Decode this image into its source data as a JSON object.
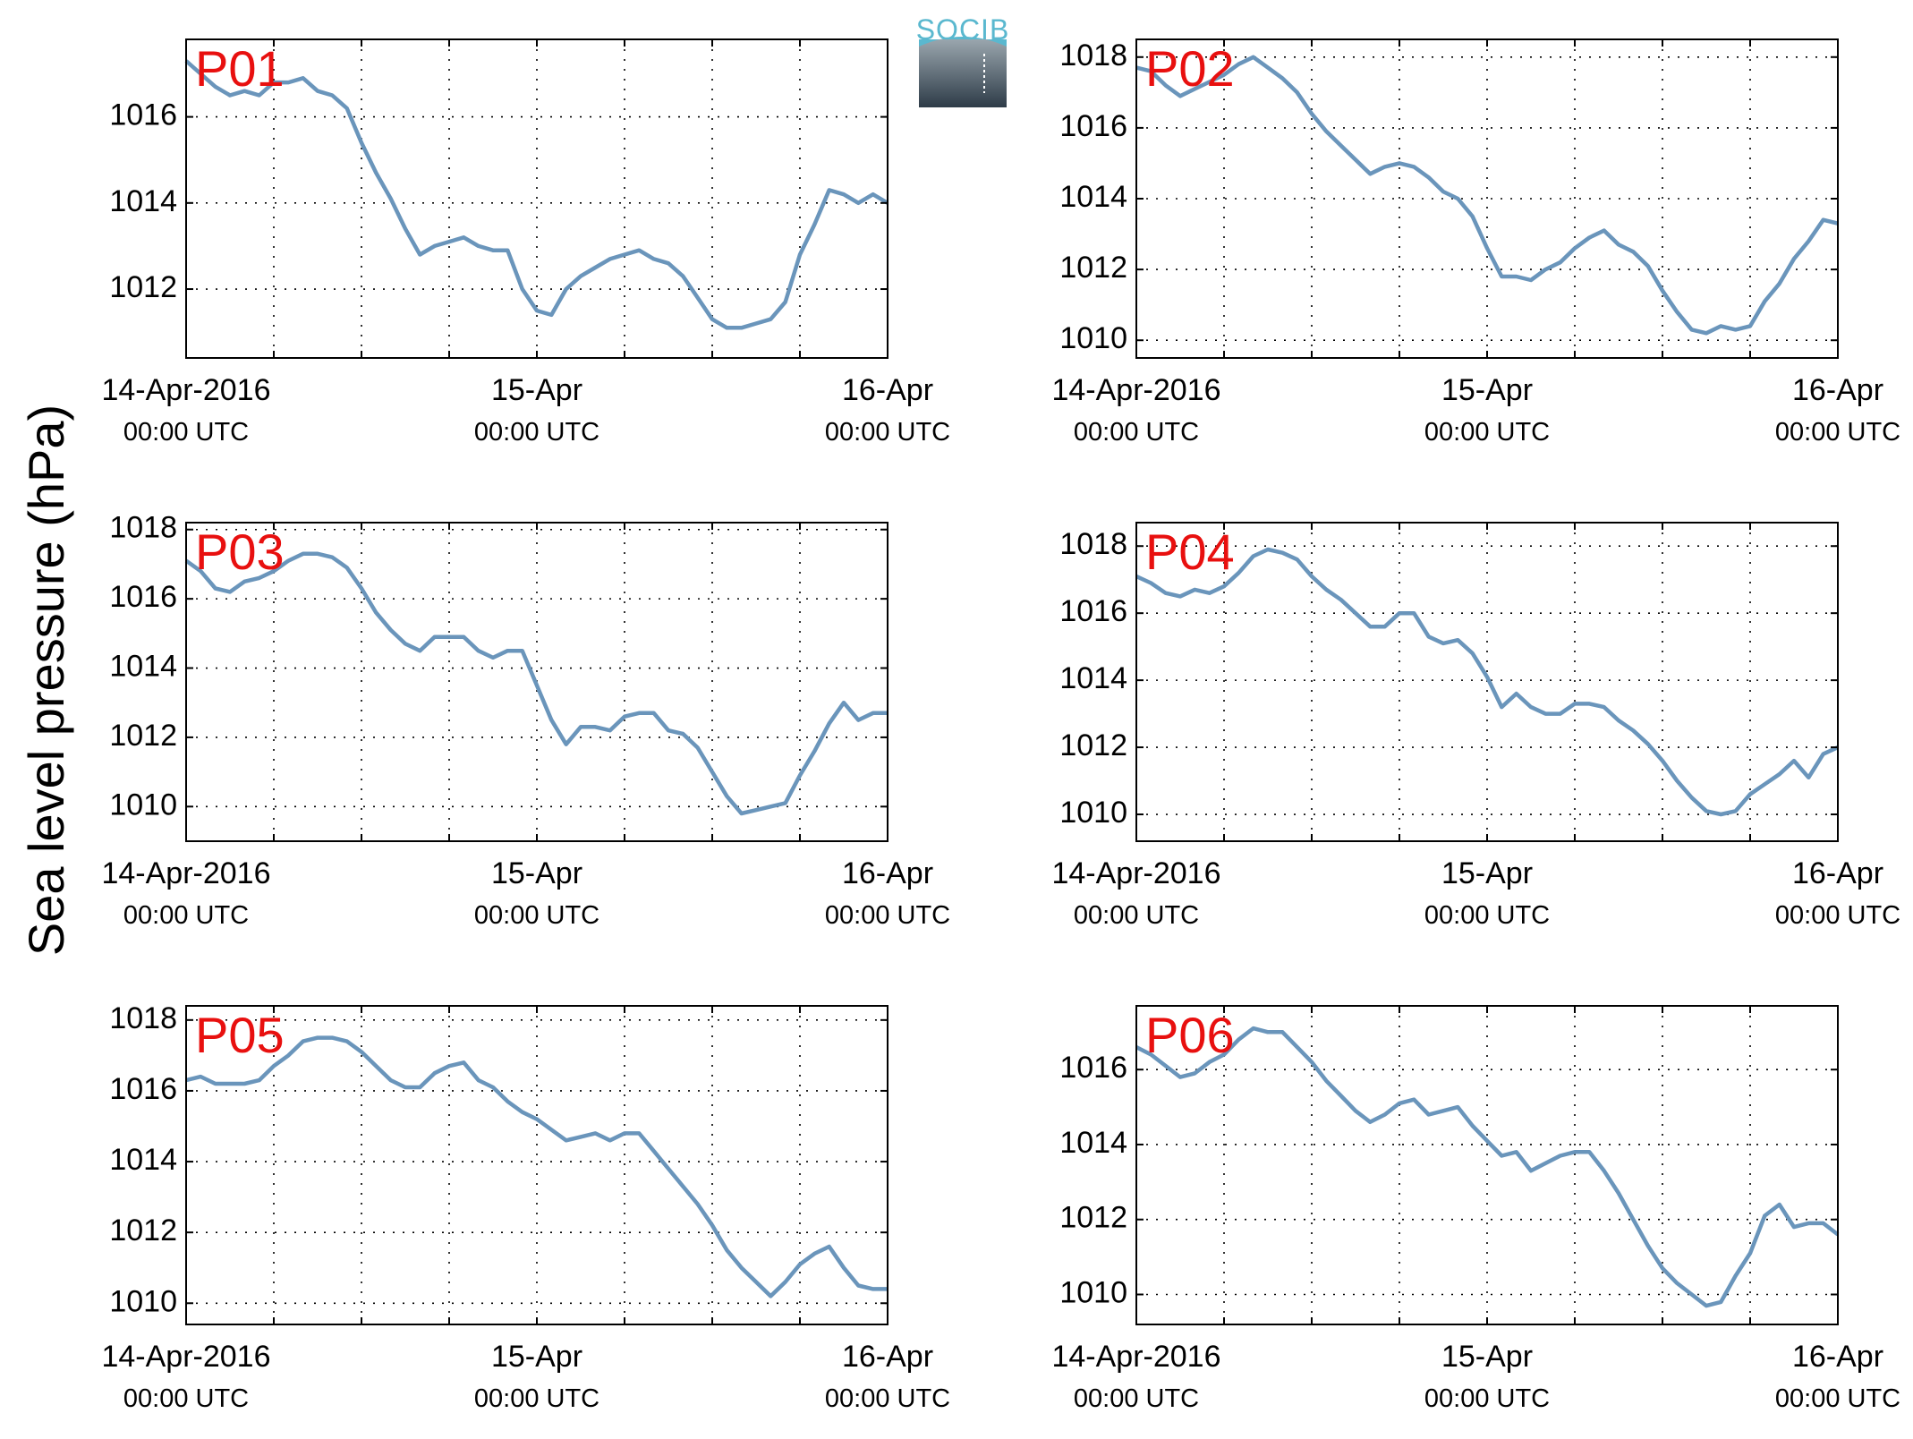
{
  "figure": {
    "ylabel": "Sea level pressure (hPa)",
    "logo_text": "SOCIB",
    "x_ticks": [
      {
        "value": 0,
        "date_label": "14-Apr-2016",
        "time_label": "00:00 UTC"
      },
      {
        "value": 24,
        "date_label": "15-Apr",
        "time_label": "00:00 UTC"
      },
      {
        "value": 48,
        "date_label": "16-Apr",
        "time_label": "00:00 UTC"
      }
    ],
    "line_color": "#6a95bb",
    "label_color": "#e8100f"
  },
  "chart_data": [
    {
      "type": "line",
      "title": "P01",
      "xlim": [
        "2016-04-14 00:00",
        "2016-04-16 00:00"
      ],
      "ylim": [
        1010.4,
        1017.8
      ],
      "yticks": [
        1012,
        1014,
        1016
      ],
      "grid": true,
      "x_hours": [
        0,
        1,
        2,
        3,
        4,
        5,
        6,
        7,
        8,
        9,
        10,
        11,
        12,
        13,
        14,
        15,
        16,
        17,
        18,
        19,
        20,
        21,
        22,
        23,
        24,
        25,
        26,
        27,
        28,
        29,
        30,
        31,
        32,
        33,
        34,
        35,
        36,
        37,
        38,
        39,
        40,
        41,
        42,
        43,
        44,
        45,
        46,
        47,
        48
      ],
      "values": [
        1017.3,
        1017.0,
        1016.7,
        1016.5,
        1016.6,
        1016.5,
        1016.8,
        1016.8,
        1016.9,
        1016.6,
        1016.5,
        1016.2,
        1015.4,
        1014.7,
        1014.1,
        1013.4,
        1012.8,
        1013.0,
        1013.1,
        1013.2,
        1013.0,
        1012.9,
        1012.9,
        1012.0,
        1011.5,
        1011.4,
        1012.0,
        1012.3,
        1012.5,
        1012.7,
        1012.8,
        1012.9,
        1012.7,
        1012.6,
        1012.3,
        1011.8,
        1011.3,
        1011.1,
        1011.1,
        1011.2,
        1011.3,
        1011.7,
        1012.8,
        1013.5,
        1014.3,
        1014.2,
        1014.0,
        1014.2,
        1014.0
      ]
    },
    {
      "type": "line",
      "title": "P02",
      "xlim": [
        "2016-04-14 00:00",
        "2016-04-16 00:00"
      ],
      "ylim": [
        1009.5,
        1018.5
      ],
      "yticks": [
        1010,
        1012,
        1014,
        1016,
        1018
      ],
      "grid": true,
      "x_hours": [
        0,
        1,
        2,
        3,
        4,
        5,
        6,
        7,
        8,
        9,
        10,
        11,
        12,
        13,
        14,
        15,
        16,
        17,
        18,
        19,
        20,
        21,
        22,
        23,
        24,
        25,
        26,
        27,
        28,
        29,
        30,
        31,
        32,
        33,
        34,
        35,
        36,
        37,
        38,
        39,
        40,
        41,
        42,
        43,
        44,
        45,
        46,
        47,
        48
      ],
      "values": [
        1017.7,
        1017.6,
        1017.2,
        1016.9,
        1017.1,
        1017.3,
        1017.5,
        1017.8,
        1018.0,
        1017.7,
        1017.4,
        1017.0,
        1016.4,
        1015.9,
        1015.5,
        1015.1,
        1014.7,
        1014.9,
        1015.0,
        1014.9,
        1014.6,
        1014.2,
        1014.0,
        1013.5,
        1012.6,
        1011.8,
        1011.8,
        1011.7,
        1012.0,
        1012.2,
        1012.6,
        1012.9,
        1013.1,
        1012.7,
        1012.5,
        1012.1,
        1011.4,
        1010.8,
        1010.3,
        1010.2,
        1010.4,
        1010.3,
        1010.4,
        1011.1,
        1011.6,
        1012.3,
        1012.8,
        1013.4,
        1013.3
      ]
    },
    {
      "type": "line",
      "title": "P03",
      "xlim": [
        "2016-04-14 00:00",
        "2016-04-16 00:00"
      ],
      "ylim": [
        1009.0,
        1018.2
      ],
      "yticks": [
        1010,
        1012,
        1014,
        1016,
        1018
      ],
      "grid": true,
      "x_hours": [
        0,
        1,
        2,
        3,
        4,
        5,
        6,
        7,
        8,
        9,
        10,
        11,
        12,
        13,
        14,
        15,
        16,
        17,
        18,
        19,
        20,
        21,
        22,
        23,
        24,
        25,
        26,
        27,
        28,
        29,
        30,
        31,
        32,
        33,
        34,
        35,
        36,
        37,
        38,
        39,
        40,
        41,
        42,
        43,
        44,
        45,
        46,
        47,
        48
      ],
      "values": [
        1017.1,
        1016.8,
        1016.3,
        1016.2,
        1016.5,
        1016.6,
        1016.8,
        1017.1,
        1017.3,
        1017.3,
        1017.2,
        1016.9,
        1016.3,
        1015.6,
        1015.1,
        1014.7,
        1014.5,
        1014.9,
        1014.9,
        1014.9,
        1014.5,
        1014.3,
        1014.5,
        1014.5,
        1013.5,
        1012.5,
        1011.8,
        1012.3,
        1012.3,
        1012.2,
        1012.6,
        1012.7,
        1012.7,
        1012.2,
        1012.1,
        1011.7,
        1011.0,
        1010.3,
        1009.8,
        1009.9,
        1010.0,
        1010.1,
        1010.9,
        1011.6,
        1012.4,
        1013.0,
        1012.5,
        1012.7,
        1012.7
      ]
    },
    {
      "type": "line",
      "title": "P04",
      "xlim": [
        "2016-04-14 00:00",
        "2016-04-16 00:00"
      ],
      "ylim": [
        1009.2,
        1018.7
      ],
      "yticks": [
        1010,
        1012,
        1014,
        1016,
        1018
      ],
      "grid": true,
      "x_hours": [
        0,
        1,
        2,
        3,
        4,
        5,
        6,
        7,
        8,
        9,
        10,
        11,
        12,
        13,
        14,
        15,
        16,
        17,
        18,
        19,
        20,
        21,
        22,
        23,
        24,
        25,
        26,
        27,
        28,
        29,
        30,
        31,
        32,
        33,
        34,
        35,
        36,
        37,
        38,
        39,
        40,
        41,
        42,
        43,
        44,
        45,
        46,
        47,
        48
      ],
      "values": [
        1017.1,
        1016.9,
        1016.6,
        1016.5,
        1016.7,
        1016.6,
        1016.8,
        1017.2,
        1017.7,
        1017.9,
        1017.8,
        1017.6,
        1017.1,
        1016.7,
        1016.4,
        1016.0,
        1015.6,
        1015.6,
        1016.0,
        1016.0,
        1015.3,
        1015.1,
        1015.2,
        1014.8,
        1014.1,
        1013.2,
        1013.6,
        1013.2,
        1013.0,
        1013.0,
        1013.3,
        1013.3,
        1013.2,
        1012.8,
        1012.5,
        1012.1,
        1011.6,
        1011.0,
        1010.5,
        1010.1,
        1010.0,
        1010.1,
        1010.6,
        1010.9,
        1011.2,
        1011.6,
        1011.1,
        1011.8,
        1012.0
      ]
    },
    {
      "type": "line",
      "title": "P05",
      "xlim": [
        "2016-04-14 00:00",
        "2016-04-16 00:00"
      ],
      "ylim": [
        1009.4,
        1018.4
      ],
      "yticks": [
        1010,
        1012,
        1014,
        1016,
        1018
      ],
      "grid": true,
      "x_hours": [
        0,
        1,
        2,
        3,
        4,
        5,
        6,
        7,
        8,
        9,
        10,
        11,
        12,
        13,
        14,
        15,
        16,
        17,
        18,
        19,
        20,
        21,
        22,
        23,
        24,
        25,
        26,
        27,
        28,
        29,
        30,
        31,
        32,
        33,
        34,
        35,
        36,
        37,
        38,
        39,
        40,
        41,
        42,
        43,
        44,
        45,
        46,
        47,
        48
      ],
      "values": [
        1016.3,
        1016.4,
        1016.2,
        1016.2,
        1016.2,
        1016.3,
        1016.7,
        1017.0,
        1017.4,
        1017.5,
        1017.5,
        1017.4,
        1017.1,
        1016.7,
        1016.3,
        1016.1,
        1016.1,
        1016.5,
        1016.7,
        1016.8,
        1016.3,
        1016.1,
        1015.7,
        1015.4,
        1015.2,
        1014.9,
        1014.6,
        1014.7,
        1014.8,
        1014.6,
        1014.8,
        1014.8,
        1014.3,
        1013.8,
        1013.3,
        1012.8,
        1012.2,
        1011.5,
        1011.0,
        1010.6,
        1010.2,
        1010.6,
        1011.1,
        1011.4,
        1011.6,
        1011.0,
        1010.5,
        1010.4,
        1010.4
      ]
    },
    {
      "type": "line",
      "title": "P06",
      "xlim": [
        "2016-04-14 00:00",
        "2016-04-16 00:00"
      ],
      "ylim": [
        1009.2,
        1017.7
      ],
      "yticks": [
        1010,
        1012,
        1014,
        1016
      ],
      "grid": true,
      "x_hours": [
        0,
        1,
        2,
        3,
        4,
        5,
        6,
        7,
        8,
        9,
        10,
        11,
        12,
        13,
        14,
        15,
        16,
        17,
        18,
        19,
        20,
        21,
        22,
        23,
        24,
        25,
        26,
        27,
        28,
        29,
        30,
        31,
        32,
        33,
        34,
        35,
        36,
        37,
        38,
        39,
        40,
        41,
        42,
        43,
        44,
        45,
        46,
        47,
        48
      ],
      "values": [
        1016.6,
        1016.4,
        1016.1,
        1015.8,
        1015.9,
        1016.2,
        1016.4,
        1016.8,
        1017.1,
        1017.0,
        1017.0,
        1016.6,
        1016.2,
        1015.7,
        1015.3,
        1014.9,
        1014.6,
        1014.8,
        1015.1,
        1015.2,
        1014.8,
        1014.9,
        1015.0,
        1014.5,
        1014.1,
        1013.7,
        1013.8,
        1013.3,
        1013.5,
        1013.7,
        1013.8,
        1013.8,
        1013.3,
        1012.7,
        1012.0,
        1011.3,
        1010.7,
        1010.3,
        1010.0,
        1009.7,
        1009.8,
        1010.5,
        1011.1,
        1012.1,
        1012.4,
        1011.8,
        1011.9,
        1011.9,
        1011.6
      ]
    }
  ]
}
